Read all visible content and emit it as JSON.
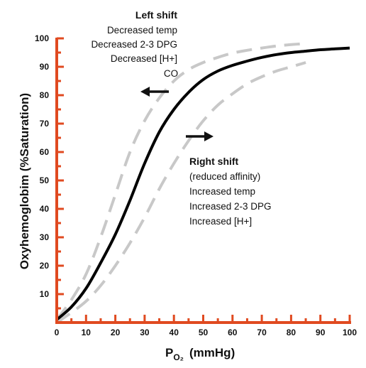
{
  "chart_data": {
    "type": "line",
    "title": "",
    "xlabel_main": "P",
    "xlabel_sub": "O₂",
    "xlabel_unit": "(mmHg)",
    "ylabel": "Oxyhemoglobim  (%Saturation)",
    "xlim": [
      0,
      100
    ],
    "ylim": [
      0,
      100
    ],
    "x_ticks": [
      "0",
      "10",
      "20",
      "30",
      "40",
      "50",
      "60",
      "70",
      "80",
      "90",
      "100"
    ],
    "y_ticks": [
      "10",
      "20",
      "30",
      "40",
      "50",
      "60",
      "70",
      "80",
      "90",
      "100"
    ],
    "grid": false,
    "series": [
      {
        "style": "solid",
        "color": "#000000",
        "x": [
          0,
          5,
          10,
          15,
          20,
          25,
          30,
          35,
          40,
          45,
          50,
          55,
          60,
          65,
          70,
          75,
          80,
          85,
          90,
          95,
          100
        ],
        "y": [
          1,
          5.5,
          12,
          21,
          31,
          43,
          56,
          67,
          75,
          81,
          85.5,
          88.5,
          90.5,
          92,
          93.3,
          94.3,
          95,
          95.5,
          96,
          96.3,
          96.6
        ]
      },
      {
        "style": "dashed",
        "color": "#c8c8c8",
        "x": [
          0,
          5,
          10,
          15,
          20,
          25,
          30,
          35,
          40,
          45,
          50,
          55,
          60,
          65,
          70,
          75,
          80,
          85
        ],
        "y": [
          1,
          8,
          17,
          30,
          45,
          60,
          71,
          79,
          85,
          89,
          91.5,
          93.3,
          94.8,
          95.8,
          96.6,
          97.3,
          97.8,
          98.2
        ]
      },
      {
        "style": "dashed",
        "color": "#c8c8c8",
        "x": [
          0,
          5,
          10,
          15,
          20,
          25,
          30,
          35,
          40,
          45,
          50,
          55,
          60,
          65,
          70,
          75,
          80,
          85
        ],
        "y": [
          0,
          3.5,
          7.5,
          13,
          20,
          28,
          37,
          47,
          56,
          64,
          71,
          76.5,
          80.5,
          84,
          86.5,
          88.5,
          90,
          91.5
        ]
      }
    ],
    "annotations": {
      "left": {
        "title": "Left shift",
        "lines": [
          "Decreased temp",
          "Decreased 2-3 DPG",
          "Decreased [H+]",
          "CO"
        ]
      },
      "right": {
        "title": "Right shift",
        "lines": [
          "(reduced affinity)",
          "Increased temp",
          "Increased 2-3 DPG",
          "Increased [H+]"
        ]
      }
    },
    "colors": {
      "axis": "#e04a20",
      "main_curve": "#000000",
      "shift_curve": "#c8c8c8"
    }
  }
}
